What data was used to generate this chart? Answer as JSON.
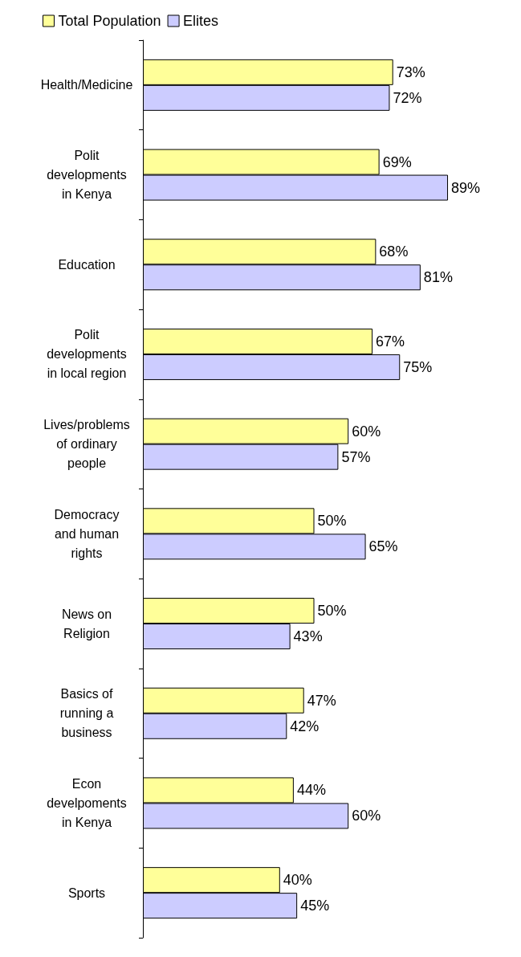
{
  "chart_data": {
    "type": "bar",
    "orientation": "horizontal",
    "legend": "top left",
    "categories": [
      "Health/Medicine",
      "Polit\ndevelopments\nin Kenya",
      "Education",
      "Polit\ndevelopments\nin local region",
      "Lives/problems\nof ordinary\npeople",
      "Democracy\nand human\nrights",
      "News on\nReligion",
      "Basics of\nrunning a\nbusiness",
      "Econ\ndevelpoments\nin Kenya",
      "Sports"
    ],
    "series": [
      {
        "name": "Total Population",
        "color": "#ffff99",
        "values": [
          73,
          69,
          68,
          67,
          60,
          50,
          50,
          47,
          44,
          40
        ],
        "value_labels": [
          "73%",
          "69%",
          "68%",
          "67%",
          "60%",
          "50%",
          "50%",
          "47%",
          "44%",
          "40%"
        ]
      },
      {
        "name": "Elites",
        "color": "#ccccff",
        "values": [
          72,
          89,
          81,
          75,
          57,
          65,
          43,
          42,
          60,
          45
        ],
        "value_labels": [
          "72%",
          "89%",
          "81%",
          "75%",
          "57%",
          "65%",
          "43%",
          "42%",
          "60%",
          "45%"
        ]
      }
    ]
  }
}
